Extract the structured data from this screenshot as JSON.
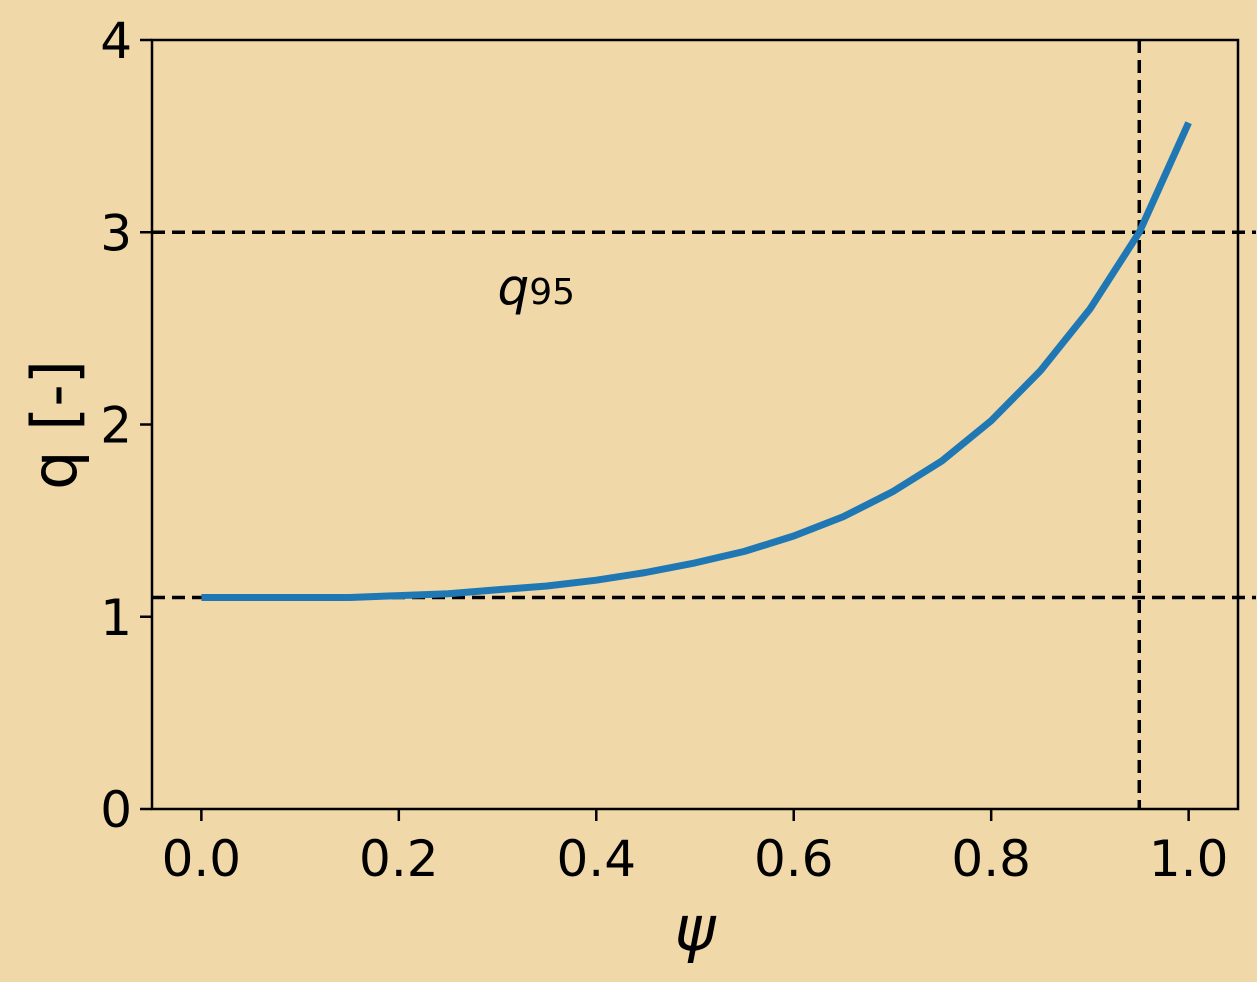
{
  "chart_data": {
    "type": "line",
    "title": "",
    "xlabel": "ψ",
    "ylabel": "q [-]",
    "xlim": [
      -0.05,
      1.05
    ],
    "ylim": [
      0,
      4
    ],
    "xticks": [
      "0.0",
      "0.2",
      "0.4",
      "0.6",
      "0.8",
      "1.0"
    ],
    "yticks": [
      "0",
      "1",
      "2",
      "3",
      "4"
    ],
    "grid": false,
    "series": [
      {
        "color": "#1f77b4",
        "x": [
          0.0,
          0.05,
          0.1,
          0.15,
          0.2,
          0.25,
          0.3,
          0.35,
          0.4,
          0.45,
          0.5,
          0.55,
          0.6,
          0.65,
          0.7,
          0.75,
          0.8,
          0.85,
          0.9,
          0.95,
          1.0
        ],
        "y": [
          1.1,
          1.1,
          1.1,
          1.1,
          1.11,
          1.12,
          1.14,
          1.16,
          1.19,
          1.23,
          1.28,
          1.34,
          1.42,
          1.52,
          1.65,
          1.81,
          2.02,
          2.28,
          2.6,
          3.0,
          3.57
        ]
      }
    ],
    "reference_lines": {
      "horizontal": [
        3.0,
        1.1
      ],
      "vertical": [
        0.95
      ],
      "color": "#000000"
    },
    "annotation": {
      "main": "q",
      "subscript": "95",
      "x": 0.3,
      "y": 2.72
    }
  }
}
